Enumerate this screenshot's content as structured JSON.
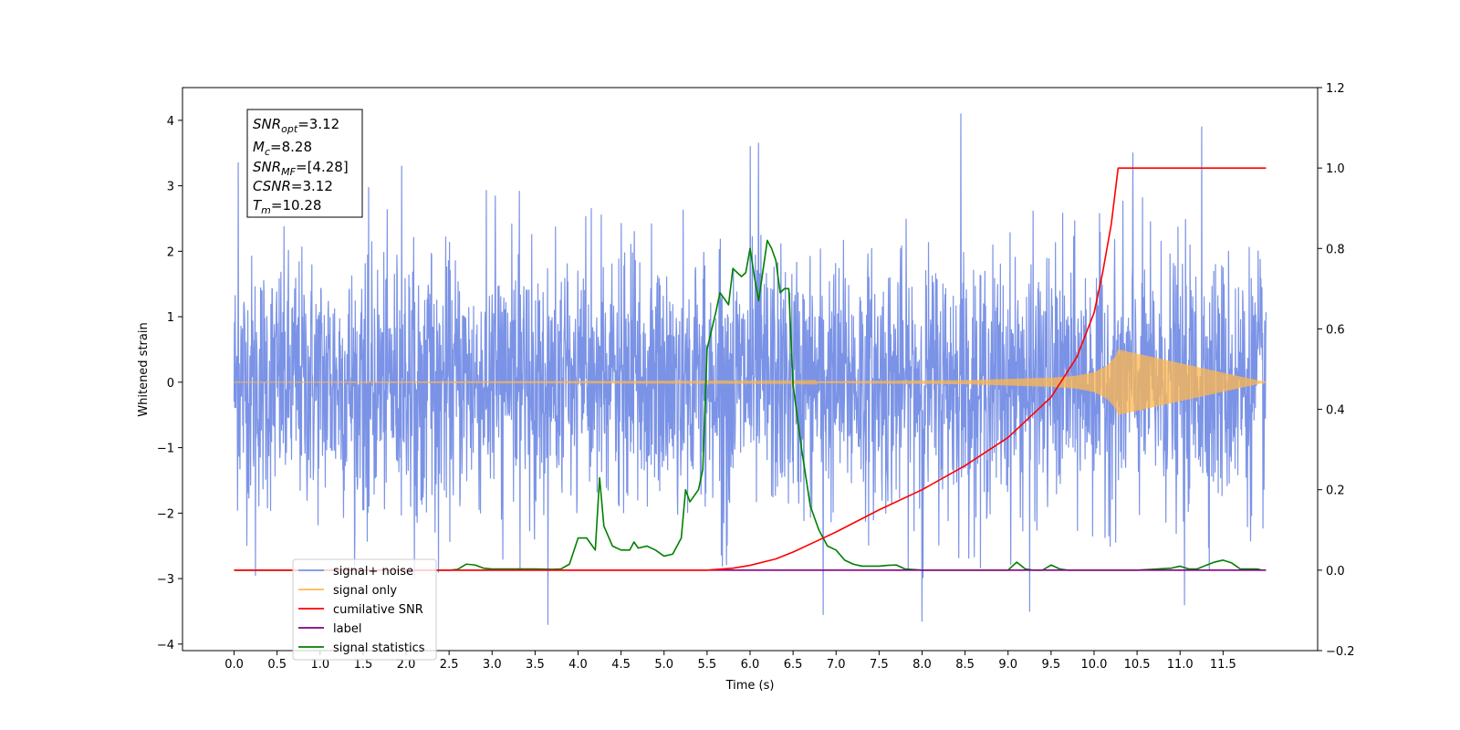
{
  "chart_data": {
    "type": "line",
    "title": "",
    "xlabel": "Time (s)",
    "ylabel": "Whitened strain",
    "xlim": [
      -0.6,
      12.6
    ],
    "ylim": [
      -4.1,
      4.5
    ],
    "y2lim": [
      -0.2,
      1.2
    ],
    "x_ticks": [
      "0.0",
      "0.5",
      "1.0",
      "1.5",
      "2.0",
      "2.5",
      "3.0",
      "3.5",
      "4.0",
      "4.5",
      "5.0",
      "5.5",
      "6.0",
      "6.5",
      "7.0",
      "7.5",
      "8.0",
      "8.5",
      "9.0",
      "9.5",
      "10.0",
      "10.5",
      "11.0",
      "11.5"
    ],
    "y_ticks": [
      "−4",
      "−3",
      "−2",
      "−1",
      "0",
      "1",
      "2",
      "3",
      "4"
    ],
    "y2_ticks": [
      "−0.2",
      "0.0",
      "0.2",
      "0.4",
      "0.6",
      "0.8",
      "1.0",
      "1.2"
    ],
    "grid": false,
    "legend_position": "bottom-left",
    "series": [
      {
        "name": "signal+ noise",
        "color": "#7b93e6",
        "axis": "left",
        "x_range": [
          0.0,
          12.0
        ],
        "noise_std": 1.0,
        "peaks": [
          [
            0.05,
            3.35
          ],
          [
            0.25,
            -2.95
          ],
          [
            1.95,
            3.3
          ],
          [
            3.65,
            -3.7
          ],
          [
            6.0,
            3.6
          ],
          [
            6.1,
            3.65
          ],
          [
            8.0,
            -3.65
          ],
          [
            8.45,
            4.1
          ],
          [
            10.45,
            3.5
          ],
          [
            11.25,
            3.9
          ],
          [
            11.05,
            -3.4
          ],
          [
            9.25,
            -3.5
          ],
          [
            6.85,
            -3.55
          ]
        ]
      },
      {
        "name": "signal only",
        "color": "#ffb74d",
        "axis": "left",
        "x": [
          0.0,
          6.5,
          7.5,
          8.5,
          9.0,
          9.5,
          9.8,
          10.0,
          10.15,
          10.25,
          10.28,
          12.0
        ],
        "amplitude": [
          0.0,
          0.01,
          0.02,
          0.03,
          0.05,
          0.07,
          0.1,
          0.15,
          0.25,
          0.4,
          0.5,
          0.0
        ]
      },
      {
        "name": "cumilative SNR",
        "color": "#ff0000",
        "axis": "right",
        "x": [
          0.0,
          5.5,
          5.8,
          6.0,
          6.3,
          6.5,
          6.8,
          7.0,
          7.5,
          8.0,
          8.5,
          9.0,
          9.5,
          9.8,
          10.0,
          10.1,
          10.2,
          10.28,
          12.0
        ],
        "y": [
          0.0,
          0.0,
          0.005,
          0.012,
          0.028,
          0.045,
          0.075,
          0.095,
          0.15,
          0.2,
          0.26,
          0.33,
          0.43,
          0.53,
          0.64,
          0.74,
          0.86,
          1.0,
          1.0
        ]
      },
      {
        "name": "label",
        "color": "#800080",
        "axis": "right",
        "x": [
          0.0,
          12.0
        ],
        "y": [
          0.0,
          0.0
        ]
      },
      {
        "name": "signal statistics",
        "color": "#008000",
        "axis": "right",
        "x": [
          0.0,
          2.5,
          2.6,
          2.7,
          2.8,
          2.9,
          3.0,
          3.5,
          3.7,
          3.8,
          3.9,
          4.0,
          4.1,
          4.2,
          4.25,
          4.3,
          4.4,
          4.5,
          4.6,
          4.65,
          4.7,
          4.8,
          4.9,
          5.0,
          5.1,
          5.2,
          5.25,
          5.3,
          5.4,
          5.45,
          5.5,
          5.6,
          5.65,
          5.75,
          5.8,
          5.9,
          5.95,
          6.0,
          6.05,
          6.1,
          6.2,
          6.25,
          6.3,
          6.35,
          6.4,
          6.45,
          6.5,
          6.6,
          6.7,
          6.8,
          6.9,
          7.0,
          7.1,
          7.2,
          7.3,
          7.5,
          7.6,
          7.7,
          7.8,
          8.0,
          9.0,
          9.05,
          9.1,
          9.2,
          9.3,
          9.4,
          9.5,
          9.6,
          9.7,
          10.0,
          10.5,
          10.9,
          11.0,
          11.1,
          11.2,
          11.3,
          11.4,
          11.5,
          11.6,
          11.7,
          11.8,
          11.9,
          11.95
        ],
        "y": [
          0.0,
          0.0,
          0.002,
          0.015,
          0.013,
          0.005,
          0.003,
          0.003,
          0.002,
          0.003,
          0.015,
          0.08,
          0.08,
          0.05,
          0.23,
          0.11,
          0.06,
          0.05,
          0.05,
          0.07,
          0.055,
          0.06,
          0.05,
          0.035,
          0.04,
          0.08,
          0.2,
          0.17,
          0.2,
          0.25,
          0.55,
          0.64,
          0.69,
          0.66,
          0.75,
          0.73,
          0.74,
          0.8,
          0.73,
          0.67,
          0.82,
          0.8,
          0.77,
          0.69,
          0.7,
          0.7,
          0.46,
          0.3,
          0.16,
          0.1,
          0.06,
          0.05,
          0.025,
          0.015,
          0.01,
          0.01,
          0.012,
          0.013,
          0.003,
          0.0,
          0.0,
          0.01,
          0.02,
          0.003,
          0.0,
          0.0,
          0.013,
          0.003,
          0.0,
          0.0,
          0.0,
          0.005,
          0.01,
          0.003,
          0.003,
          0.012,
          0.02,
          0.025,
          0.018,
          0.003,
          0.003,
          0.003,
          0.0
        ]
      }
    ],
    "legend_entries": [
      {
        "label": "signal+ noise",
        "color": "#7b93e6"
      },
      {
        "label": "signal only",
        "color": "#ffb74d"
      },
      {
        "label": "cumilative SNR",
        "color": "#ff0000"
      },
      {
        "label": "label",
        "color": "#800080"
      },
      {
        "label": "signal statistics",
        "color": "#008000"
      }
    ],
    "annotation": {
      "lines": [
        {
          "base": "SNR",
          "sub": "opt",
          "value": "=3.12"
        },
        {
          "base": "M",
          "sub": "c",
          "value": "=8.28"
        },
        {
          "base": "SNR",
          "sub": "MF",
          "value": "=[4.28]"
        },
        {
          "base": "CSNR",
          "sub": "",
          "value": "=3.12"
        },
        {
          "base": "T",
          "sub": "m",
          "value": "=10.28"
        }
      ]
    }
  }
}
